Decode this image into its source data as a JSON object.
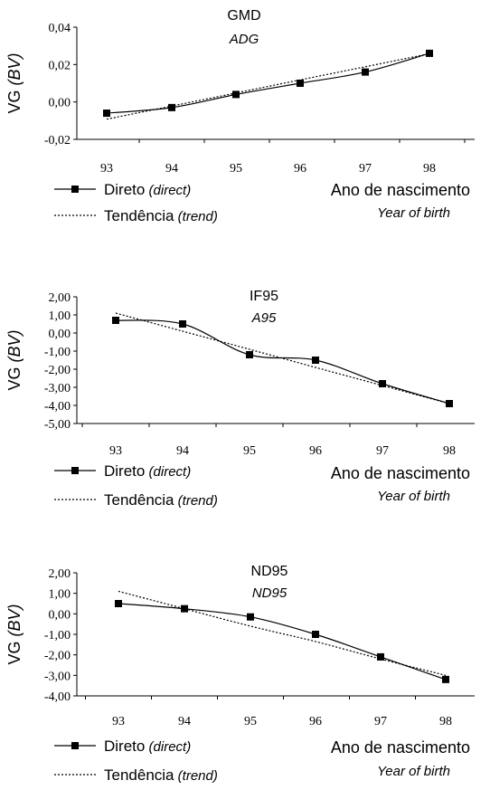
{
  "chart_data": [
    {
      "type": "line",
      "title": "GMD",
      "subtitle": "ADG",
      "ylabel": "VG",
      "ylabel_italic": "(BV)",
      "xlabel": "Ano de nascimento",
      "xlabel_italic": "Year of birth",
      "categories": [
        "93",
        "94",
        "95",
        "96",
        "97",
        "98"
      ],
      "x": [
        93,
        94,
        95,
        96,
        97,
        98
      ],
      "ylim": [
        -0.02,
        0.04
      ],
      "yticks": [
        "0,04",
        "0,02",
        "0,00",
        "-0,02"
      ],
      "ytick_values": [
        0.04,
        0.02,
        0.0,
        -0.02
      ],
      "series": [
        {
          "name": "Direto",
          "name_italic": "(direct)",
          "style": "solid-marker",
          "values": [
            -0.006,
            -0.003,
            0.004,
            0.01,
            0.016,
            0.026
          ]
        },
        {
          "name": "Tendência",
          "name_italic": "(trend)",
          "style": "dotted",
          "values": [
            -0.0092,
            -0.0022,
            0.0048,
            0.0118,
            0.0188,
            0.0258
          ]
        }
      ]
    },
    {
      "type": "line",
      "title": "IF95",
      "subtitle": "A95",
      "ylabel": "VG",
      "ylabel_italic": "(BV)",
      "xlabel": "Ano de nascimento",
      "xlabel_italic": "Year of birth",
      "categories": [
        "93",
        "94",
        "95",
        "96",
        "97",
        "98"
      ],
      "x": [
        93,
        94,
        95,
        96,
        97,
        98
      ],
      "ylim": [
        -5,
        2
      ],
      "yticks": [
        "2,00",
        "1,00",
        "0,00",
        "-1,00",
        "-2,00",
        "-3,00",
        "-4,00",
        "-5,00"
      ],
      "ytick_values": [
        2,
        1,
        0,
        -1,
        -2,
        -3,
        -4,
        -5
      ],
      "series": [
        {
          "name": "Direto",
          "name_italic": "(direct)",
          "style": "solid-marker",
          "values": [
            0.7,
            0.5,
            -1.2,
            -1.5,
            -2.8,
            -3.9
          ]
        },
        {
          "name": "Tendência",
          "name_italic": "(trend)",
          "style": "dotted",
          "values": [
            1.1,
            0.1,
            -0.9,
            -1.9,
            -2.9,
            -3.9
          ]
        }
      ]
    },
    {
      "type": "line",
      "title": "ND95",
      "subtitle": "ND95",
      "ylabel": "VG",
      "ylabel_italic": "(BV)",
      "xlabel": "Ano de nascimento",
      "xlabel_italic": "Year of birth",
      "categories": [
        "93",
        "94",
        "95",
        "96",
        "97",
        "98"
      ],
      "x": [
        93,
        94,
        95,
        96,
        97,
        98
      ],
      "ylim": [
        -4,
        2
      ],
      "yticks": [
        "2,00",
        "1,00",
        "0,00",
        "-1,00",
        "-2,00",
        "-3,00",
        "-4,00"
      ],
      "ytick_values": [
        2,
        1,
        0,
        -1,
        -2,
        -3,
        -4
      ],
      "series": [
        {
          "name": "Direto",
          "name_italic": "(direct)",
          "style": "solid-marker",
          "values": [
            0.5,
            0.25,
            -0.15,
            -1.0,
            -2.1,
            -3.2
          ]
        },
        {
          "name": "Tendência",
          "name_italic": "(trend)",
          "style": "dotted",
          "values": [
            1.1,
            0.25,
            -0.6,
            -1.35,
            -2.2,
            -3.0
          ]
        }
      ]
    }
  ]
}
